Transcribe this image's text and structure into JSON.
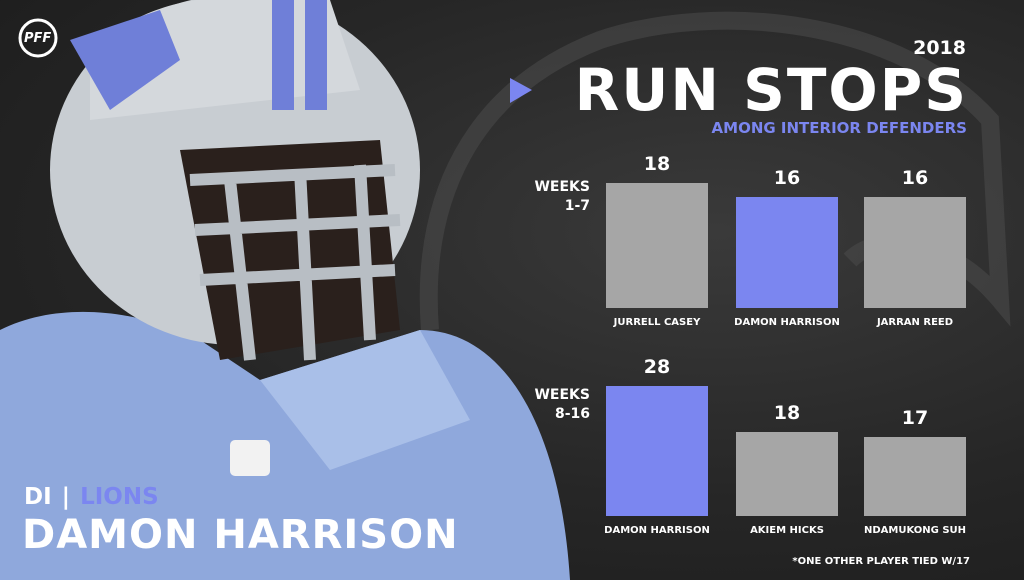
{
  "logo": "PFF",
  "header": {
    "year": "2018",
    "title": "RUN STOPS",
    "subtitle": "AMONG INTERIOR DEFENDERS"
  },
  "player": {
    "position": "DI",
    "team": "LIONS",
    "name": "DAMON HARRISON"
  },
  "footnote": "*ONE OTHER PLAYER TIED W/17",
  "chart_data": [
    {
      "type": "bar",
      "title": "WEEKS 1-7",
      "categories": [
        "JURRELL CASEY",
        "DAMON HARRISON",
        "JARRAN REED"
      ],
      "values": [
        18,
        16,
        16
      ],
      "colors": [
        "#a6a6a6",
        "#7b86f0",
        "#a6a6a6"
      ]
    },
    {
      "type": "bar",
      "title": "WEEKS 8-16",
      "categories": [
        "DAMON HARRISON",
        "AKIEM HICKS",
        "NDAMUKONG SUH"
      ],
      "values": [
        28,
        18,
        17
      ],
      "colors": [
        "#7b86f0",
        "#a6a6a6",
        "#a6a6a6"
      ]
    }
  ]
}
